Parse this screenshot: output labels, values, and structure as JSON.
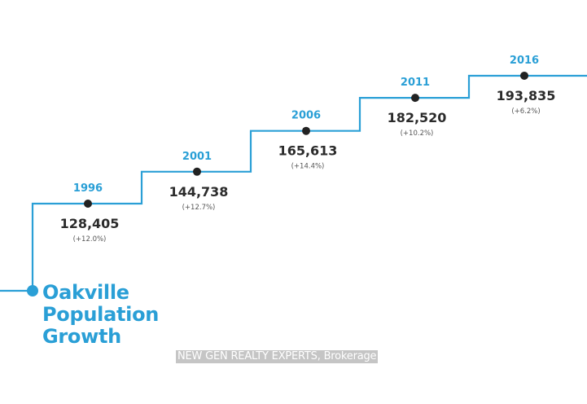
{
  "chart_data": {
    "type": "line",
    "title_lines": [
      "Oakville",
      "Population",
      "Growth"
    ],
    "xlabel": "",
    "ylabel": "",
    "x": [
      "1996",
      "2001",
      "2006",
      "2011",
      "2016"
    ],
    "series": [
      {
        "values": [
          128405,
          144738,
          165613,
          182520,
          193835
        ],
        "value_labels": [
          "128,405",
          "144,738",
          "165,613",
          "182,520",
          "193,835"
        ],
        "change_labels": [
          "(+12.0%)",
          "(+12.7%)",
          "(+14.4%)",
          "(+10.2%)",
          "(+6.2%)"
        ]
      }
    ],
    "grid": false,
    "legend": "none"
  },
  "watermark": "NEW GEN REALTY EXPERTS, Brokerage",
  "colors": {
    "accent": "#2a9fd6",
    "text": "#2b2b2b",
    "muted": "#555555",
    "marker": "#222222",
    "watermark_bg": "#969696"
  }
}
